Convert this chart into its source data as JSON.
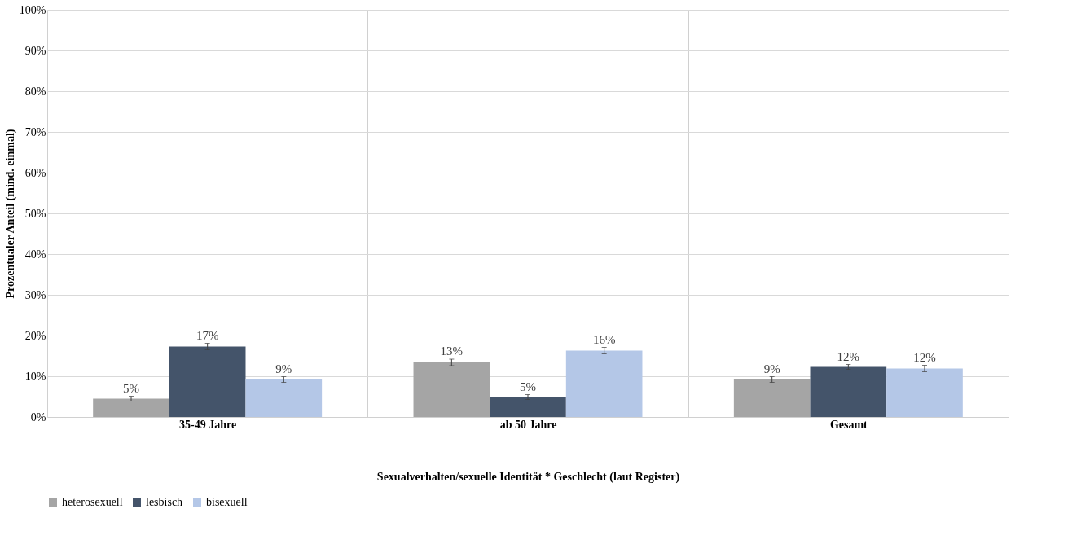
{
  "chart_data": {
    "type": "bar",
    "categories": [
      "35-49 Jahre",
      "ab 50 Jahre",
      "Gesamt"
    ],
    "xlabel": "Sexualverhalten/sexuelle Identität * Geschlecht (laut Register)",
    "ylabel": "Prozentualer Anteil (mind. einmal)",
    "ylim": [
      0,
      100
    ],
    "yticks": [
      {
        "value": 0,
        "label": "0%"
      },
      {
        "value": 10,
        "label": "10%"
      },
      {
        "value": 20,
        "label": "20%"
      },
      {
        "value": 30,
        "label": "30%"
      },
      {
        "value": 40,
        "label": "40%"
      },
      {
        "value": 50,
        "label": "50%"
      },
      {
        "value": 60,
        "label": "60%"
      },
      {
        "value": 70,
        "label": "70%"
      },
      {
        "value": 80,
        "label": "80%"
      },
      {
        "value": 90,
        "label": "90%"
      },
      {
        "value": 100,
        "label": "100%"
      }
    ],
    "series": [
      {
        "name": "heterosexuell",
        "color": "#a5a5a5",
        "values": [
          4.5,
          13.4,
          9.2
        ],
        "errors": [
          0.6,
          0.8,
          0.7
        ],
        "value_labels": [
          "5%",
          "13%",
          "9%"
        ]
      },
      {
        "name": "lesbisch",
        "color": "#44546a",
        "values": [
          17.3,
          4.9,
          12.3
        ],
        "errors": [
          0.8,
          0.6,
          0.6
        ],
        "value_labels": [
          "17%",
          "5%",
          "12%"
        ]
      },
      {
        "name": "bisexuell",
        "color": "#b4c7e7",
        "values": [
          9.2,
          16.3,
          11.9
        ],
        "errors": [
          0.7,
          0.8,
          0.8
        ],
        "value_labels": [
          "9%",
          "16%",
          "12%"
        ]
      }
    ],
    "grid": true,
    "legend": "bottom"
  }
}
